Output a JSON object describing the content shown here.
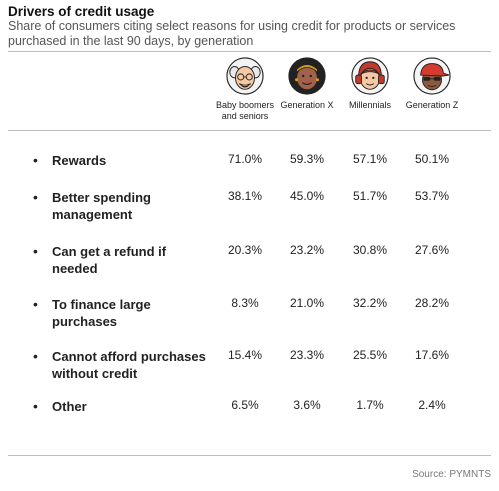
{
  "title": "Drivers of credit usage",
  "subtitle": "Share of consumers citing select reasons for using credit for products or services purchased in the last 90 days, by generation",
  "source": "Source: PYMNTS",
  "chart_data": {
    "type": "table",
    "columns": [
      {
        "label": "Baby boomers and seniors",
        "icon": "elderly-person-avatar-icon"
      },
      {
        "label": "Generation X",
        "icon": "woman-avatar-icon"
      },
      {
        "label": "Millennials",
        "icon": "person-headphones-avatar-icon"
      },
      {
        "label": "Generation Z",
        "icon": "person-cap-avatar-icon"
      }
    ],
    "rows": [
      {
        "label": "Rewards",
        "values": [
          "71.0%",
          "59.3%",
          "57.1%",
          "50.1%"
        ]
      },
      {
        "label": "Better spending management",
        "values": [
          "38.1%",
          "45.0%",
          "51.7%",
          "53.7%"
        ]
      },
      {
        "label": "Can get a refund if needed",
        "values": [
          "20.3%",
          "23.2%",
          "30.8%",
          "27.6%"
        ]
      },
      {
        "label": "To finance large purchases",
        "values": [
          "8.3%",
          "21.0%",
          "32.2%",
          "28.2%"
        ]
      },
      {
        "label": "Cannot afford purchases without credit",
        "values": [
          "15.4%",
          "23.3%",
          "25.5%",
          "17.6%"
        ]
      },
      {
        "label": "Other",
        "values": [
          "6.5%",
          "3.6%",
          "1.7%",
          "2.4%"
        ]
      }
    ]
  }
}
